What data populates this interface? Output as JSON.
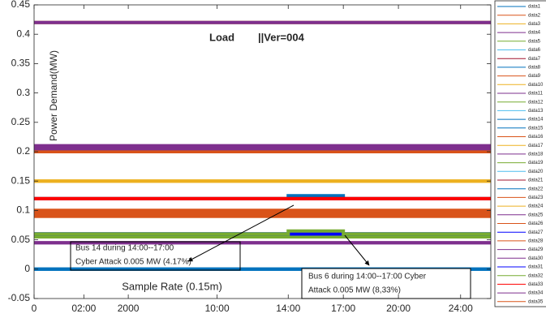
{
  "chart_data": {
    "type": "line",
    "title": "Load",
    "subtitle": "||Ver=004",
    "ylabel": "Power Demand(MW)",
    "xlabel": "Sample Rate (0.15m)",
    "annotations": [
      {
        "lines": [
          "Bus 14 during 14:00--17:00",
          "Cyber Attack 0.005 MW (4.17%)"
        ],
        "color": "#ff0000"
      },
      {
        "lines": [
          "Bus 6 during 14:00--17:00 Cyber",
          "Attack 0.005 MW (8,33%)"
        ],
        "color": "#0000ff"
      }
    ],
    "xlim": [
      0,
      25.7
    ],
    "xticks": [
      0,
      {
        "value": 2.8,
        "label": "02:00"
      },
      {
        "value": 5.3,
        "label": "2000"
      },
      {
        "value": 10.3,
        "label": "10:00"
      },
      {
        "value": 14.3,
        "label": "14:00"
      },
      {
        "value": 17.4,
        "label": "17:00"
      },
      {
        "value": 20.5,
        "label": "20:00"
      },
      {
        "value": 24,
        "label": "24:00"
      }
    ],
    "ylim": [
      -0.05,
      0.45
    ],
    "yticks": [
      -0.05,
      0,
      0.05,
      0.1,
      0.15,
      0.2,
      0.25,
      0.3,
      0.35,
      0.4,
      0.45
    ],
    "legend": "outside-right",
    "x": [
      0,
      14.3,
      14.3,
      17.4,
      17.4,
      25.7
    ],
    "series": [
      {
        "name": "data1",
        "color": "#0072BD",
        "values": [
          0,
          0,
          0,
          0,
          0,
          0
        ]
      },
      {
        "name": "data2",
        "color": "#D95319",
        "values": [
          0.095,
          0.095,
          0.095,
          0.095,
          0.095,
          0.095
        ]
      },
      {
        "name": "data3",
        "color": "#EDB120",
        "values": [
          0.15,
          0.15,
          0.15,
          0.15,
          0.15,
          0.15
        ]
      },
      {
        "name": "data4",
        "color": "#7E2F8E",
        "values": [
          0.42,
          0.42,
          0.42,
          0.42,
          0.42,
          0.42
        ]
      },
      {
        "name": "data5",
        "color": "#77AC30",
        "values": [
          0.055,
          0.055,
          0.055,
          0.055,
          0.055,
          0.055
        ]
      },
      {
        "name": "data6",
        "color": "#4DBEEE",
        "values": [
          0.06,
          0.06,
          0.06,
          0.06,
          0.06,
          0.06
        ]
      },
      {
        "name": "data7",
        "color": "#A2142F",
        "values": [
          0.12,
          0.12,
          0.12,
          0.12,
          0.12,
          0.12
        ]
      },
      {
        "name": "data8",
        "color": "#0072BD",
        "values": [
          0,
          0,
          0,
          0,
          0,
          0
        ]
      },
      {
        "name": "data9",
        "color": "#D95319",
        "values": [
          0.1,
          0.1,
          0.1,
          0.1,
          0.1,
          0.1
        ]
      },
      {
        "name": "data10",
        "color": "#EDB120",
        "values": [
          0.15,
          0.15,
          0.15,
          0.15,
          0.15,
          0.15
        ]
      },
      {
        "name": "data11",
        "color": "#7E2F8E",
        "values": [
          0.21,
          0.21,
          0.21,
          0.21,
          0.21,
          0.21
        ]
      },
      {
        "name": "data12",
        "color": "#77AC30",
        "values": [
          0.055,
          0.055,
          0.055,
          0.055,
          0.055,
          0.055
        ]
      },
      {
        "name": "data13",
        "color": "#4DBEEE",
        "values": [
          0.06,
          0.06,
          0.06,
          0.06,
          0.06,
          0.06
        ]
      },
      {
        "name": "data14",
        "color": "#0072BD",
        "values": [
          0.12,
          0.12,
          0.125,
          0.125,
          0.12,
          0.12
        ]
      },
      {
        "name": "data15",
        "color": "#0072BD",
        "values": [
          0.205,
          0.205,
          0.205,
          0.205,
          0.205,
          0.205
        ]
      },
      {
        "name": "data16",
        "color": "#D95319",
        "values": [
          0.09,
          0.09,
          0.09,
          0.09,
          0.09,
          0.09
        ]
      },
      {
        "name": "data17",
        "color": "#EDB120",
        "values": [
          0.42,
          0.42,
          0.42,
          0.42,
          0.42,
          0.42
        ]
      },
      {
        "name": "data18",
        "color": "#7E2F8E",
        "values": [
          0.045,
          0.045,
          0.045,
          0.045,
          0.045,
          0.045
        ]
      },
      {
        "name": "data19",
        "color": "#77AC30",
        "values": [
          0.055,
          0.055,
          0.055,
          0.055,
          0.055,
          0.055
        ]
      },
      {
        "name": "data20",
        "color": "#4DBEEE",
        "values": [
          0.06,
          0.06,
          0.06,
          0.06,
          0.06,
          0.06
        ]
      },
      {
        "name": "data21",
        "color": "#A2142F",
        "values": [
          0.12,
          0.12,
          0.12,
          0.12,
          0.12,
          0.12
        ]
      },
      {
        "name": "data22",
        "color": "#0072BD",
        "values": [
          0,
          0,
          0,
          0,
          0,
          0
        ]
      },
      {
        "name": "data23",
        "color": "#D95319",
        "values": [
          0.1,
          0.1,
          0.1,
          0.1,
          0.1,
          0.1
        ]
      },
      {
        "name": "data24",
        "color": "#EDB120",
        "values": [
          0.15,
          0.15,
          0.15,
          0.15,
          0.15,
          0.15
        ]
      },
      {
        "name": "data25",
        "color": "#7E2F8E",
        "values": [
          0.21,
          0.21,
          0.21,
          0.21,
          0.21,
          0.21
        ]
      },
      {
        "name": "data26",
        "color": "#D95319",
        "values": [
          0.2,
          0.2,
          0.2,
          0.2,
          0.2,
          0.2
        ]
      },
      {
        "name": "data27",
        "color": "#0000FF",
        "values": [
          0.06,
          0.06,
          0.06,
          0.06,
          0.06,
          0.06
        ]
      },
      {
        "name": "data28",
        "color": "#D95319",
        "values": [
          0.09,
          0.09,
          0.09,
          0.09,
          0.09,
          0.09
        ]
      },
      {
        "name": "data29",
        "color": "#7E2F8E",
        "values": [
          0.42,
          0.42,
          0.42,
          0.42,
          0.42,
          0.42
        ]
      },
      {
        "name": "data30",
        "color": "#7E2F8E",
        "values": [
          0.045,
          0.045,
          0.045,
          0.045,
          0.045,
          0.045
        ]
      },
      {
        "name": "data31",
        "color": "#0000FF",
        "values": [
          0.06,
          0.06,
          0.06,
          0.06,
          0.06,
          0.06
        ]
      },
      {
        "name": "data32",
        "color": "#77AC30",
        "values": [
          0.06,
          0.06,
          0.065,
          0.065,
          0.06,
          0.06
        ]
      },
      {
        "name": "data33",
        "color": "#FF0000",
        "values": [
          0.12,
          0.12,
          0.12,
          0.12,
          0.12,
          0.12
        ]
      },
      {
        "name": "data34",
        "color": "#7E2F8E",
        "values": [
          0.205,
          0.205,
          0.205,
          0.205,
          0.205,
          0.205
        ]
      },
      {
        "name": "data35",
        "color": "#D95319",
        "values": [
          0.095,
          0.095,
          0.095,
          0.095,
          0.095,
          0.095
        ]
      }
    ]
  }
}
